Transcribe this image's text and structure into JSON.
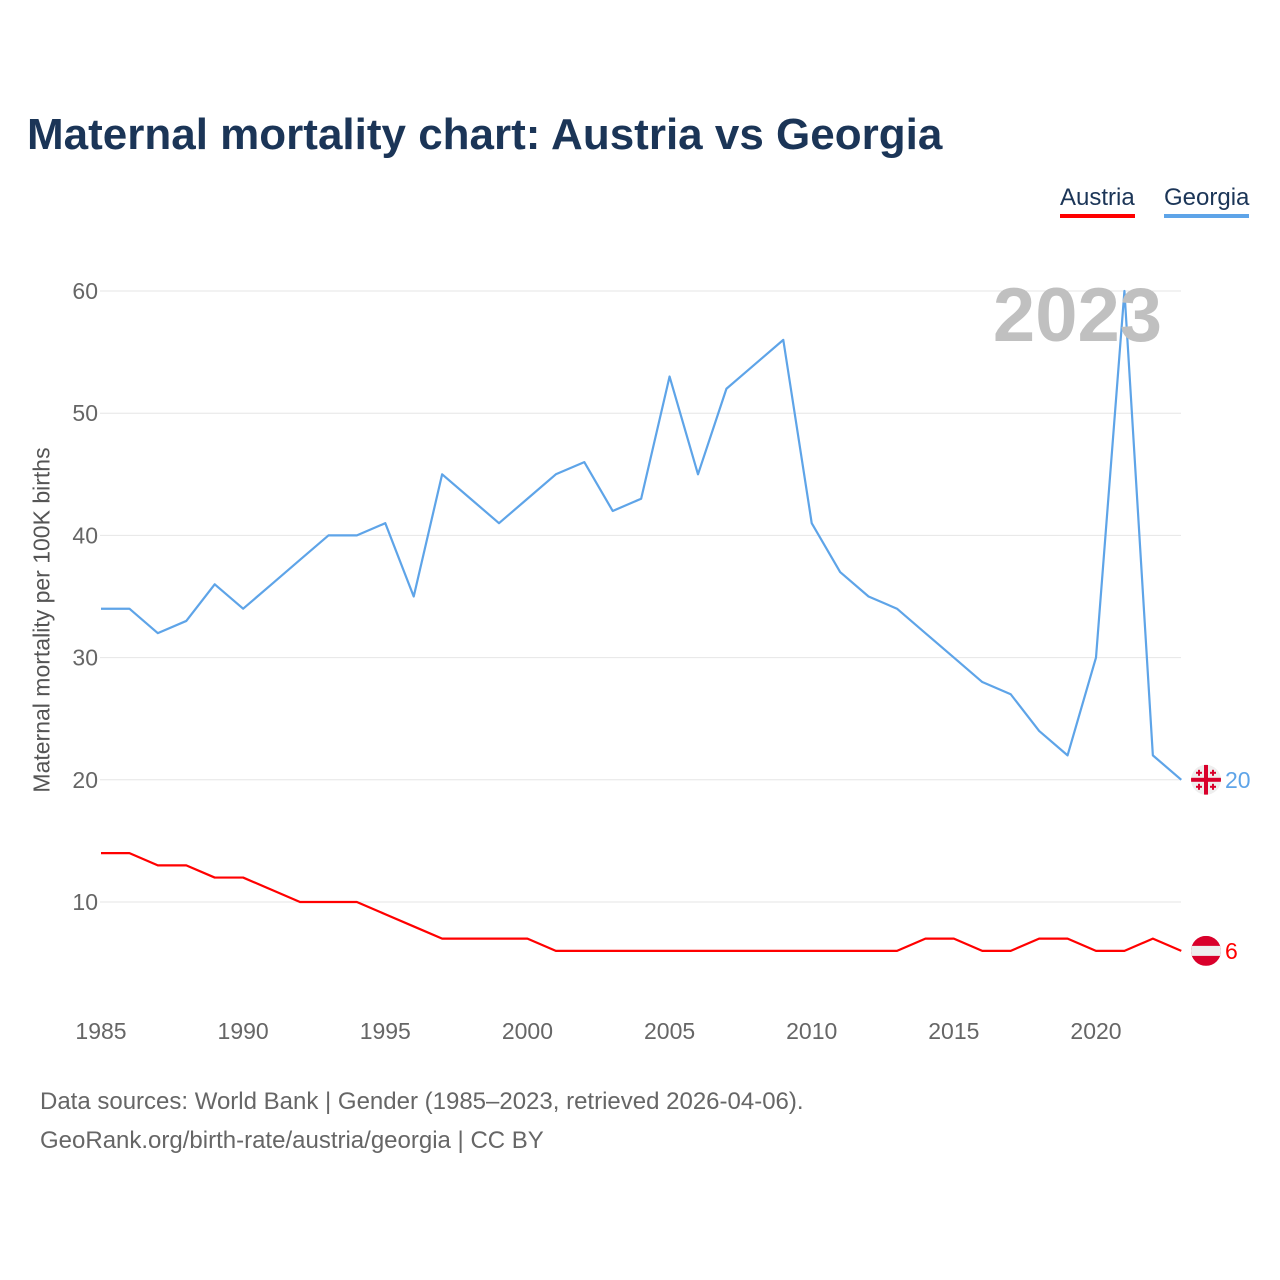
{
  "title": "Maternal mortality chart: Austria vs Georgia",
  "chart_data": {
    "type": "line",
    "title": "Maternal mortality chart: Austria vs Georgia",
    "ylabel": "Maternal mortality per 100K births",
    "xlabel": "",
    "year_label": "2023",
    "x": [
      1985,
      1986,
      1987,
      1988,
      1989,
      1990,
      1991,
      1992,
      1993,
      1994,
      1995,
      1996,
      1997,
      1998,
      1999,
      2000,
      2001,
      2002,
      2003,
      2004,
      2005,
      2006,
      2007,
      2008,
      2009,
      2010,
      2011,
      2012,
      2013,
      2014,
      2015,
      2016,
      2017,
      2018,
      2019,
      2020,
      2021,
      2022,
      2023
    ],
    "series": [
      {
        "name": "Austria",
        "color": "#ff0000",
        "end_label": "6",
        "values": [
          14,
          14,
          13,
          13,
          12,
          12,
          11,
          10,
          10,
          10,
          9,
          8,
          7,
          7,
          7,
          7,
          6,
          6,
          6,
          6,
          6,
          6,
          6,
          6,
          6,
          6,
          6,
          6,
          6,
          7,
          7,
          6,
          6,
          7,
          7,
          6,
          6,
          7,
          6
        ]
      },
      {
        "name": "Georgia",
        "color": "#5ea4e8",
        "end_label": "20",
        "values": [
          34,
          34,
          32,
          33,
          36,
          34,
          36,
          38,
          40,
          40,
          41,
          35,
          45,
          43,
          41,
          43,
          45,
          46,
          42,
          43,
          53,
          45,
          52,
          54,
          56,
          41,
          37,
          35,
          34,
          32,
          30,
          28,
          27,
          24,
          22,
          30,
          60,
          22,
          20
        ]
      }
    ],
    "xlim": [
      1985,
      2023
    ],
    "ylim": [
      0,
      60
    ],
    "xticks": [
      "1985",
      "1990",
      "1995",
      "2000",
      "2005",
      "2010",
      "2015",
      "2020"
    ],
    "yticks": [
      "10",
      "20",
      "30",
      "40",
      "50",
      "60"
    ],
    "grid": true,
    "legend": "top-right"
  },
  "sources": {
    "line1": "Data sources: World Bank | Gender (1985–2023, retrieved 2026-04-06).",
    "line2": "GeoRank.org/birth-rate/austria/georgia | CC BY"
  }
}
